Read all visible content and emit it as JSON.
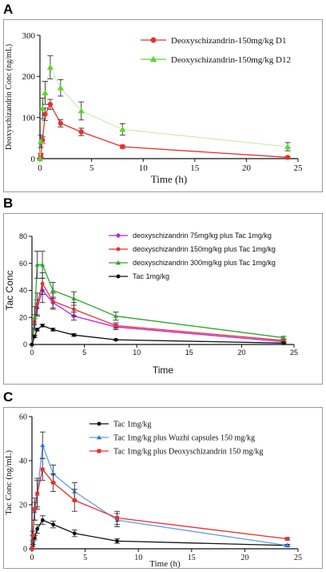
{
  "panels": [
    {
      "letter": "A",
      "chart_data": {
        "type": "line",
        "font": "serif",
        "xlabel": "Time (h)",
        "ylabel": "Deoxyschizandrin Conc (ng/mL)",
        "xlim": [
          0,
          25
        ],
        "ylim": [
          0,
          300
        ],
        "xticks": [
          0,
          5,
          10,
          15,
          20,
          25
        ],
        "yticks": [
          0,
          100,
          200,
          300
        ],
        "legend_position": "top-right",
        "series": [
          {
            "name": "Deoxyschizandrin-150mg/kg D1",
            "color": "#e8302c",
            "line_color": "#e8302c",
            "marker": "circle",
            "x": [
              0,
              0.083,
              0.25,
              0.5,
              1,
              2,
              4,
              8,
              24
            ],
            "y": [
              0,
              8,
              45,
              108,
              132,
              86,
              65,
              29,
              3
            ],
            "err": [
              0,
              5,
              8,
              15,
              12,
              9,
              9,
              4,
              2
            ]
          },
          {
            "name": "Deoxyschizandrin-150mg/kg D12",
            "color": "#5ed629",
            "line_color": "#cdeeb8",
            "marker": "triangle",
            "x": [
              0,
              0.083,
              0.25,
              0.5,
              1,
              2,
              4,
              8,
              24
            ],
            "y": [
              0,
              42,
              122,
              160,
              222,
              172,
              116,
              71,
              29
            ],
            "err": [
              0,
              15,
              25,
              28,
              28,
              20,
              22,
              14,
              10
            ]
          }
        ]
      }
    },
    {
      "letter": "B",
      "chart_data": {
        "type": "line",
        "font": "sans",
        "xlabel": "Time",
        "ylabel": "Tac Conc",
        "xlim": [
          0,
          25
        ],
        "ylim": [
          0,
          80
        ],
        "xticks": [
          0,
          5,
          10,
          15,
          20,
          25
        ],
        "yticks": [
          0,
          20,
          40,
          60,
          80
        ],
        "legend_position": "top-right",
        "series": [
          {
            "name": "deoxyschizandrin 75mg/kg plus Tac 1mg/kg",
            "color": "#bb22dd",
            "line_color": "#bb22dd",
            "marker": "diamond",
            "x": [
              0,
              0.25,
              0.5,
              1,
              2,
              4,
              8,
              24
            ],
            "y": [
              0,
              15,
              27,
              40,
              31,
              21,
              13,
              2
            ],
            "err": [
              0,
              4,
              6,
              9,
              4,
              3,
              2,
              1
            ]
          },
          {
            "name": "deoxyschizandrin 150mg/kg plus Tac 1mg/kg",
            "color": "#e8302c",
            "line_color": "#e8302c",
            "marker": "circle",
            "x": [
              0,
              0.25,
              0.5,
              1,
              2,
              4,
              8,
              24
            ],
            "y": [
              0,
              17,
              30,
              45,
              32,
              26,
              14,
              3
            ],
            "err": [
              0,
              5,
              8,
              8,
              6,
              5,
              2,
              1
            ]
          },
          {
            "name": "deoxyschizandrin 300mg/kg plus Tac 1mg/kg",
            "color": "#2aa82a",
            "line_color": "#2aa82a",
            "marker": "triangle",
            "x": [
              0,
              0.25,
              0.5,
              1,
              2,
              4,
              8,
              24
            ],
            "y": [
              0,
              20,
              59,
              59,
              40,
              34,
              21,
              5
            ],
            "err": [
              0,
              8,
              10,
              10,
              6,
              5,
              3,
              1
            ]
          },
          {
            "name": "Tac 1mg/kg",
            "color": "#111111",
            "line_color": "#111111",
            "marker": "circle",
            "x": [
              0,
              0.25,
              0.5,
              1,
              2,
              4,
              8,
              24
            ],
            "y": [
              0,
              6,
              11,
              14,
              11,
              7,
              3.5,
              1
            ],
            "err": [
              0,
              1,
              1,
              1,
              1,
              1,
              0.5,
              0.3
            ]
          }
        ]
      }
    },
    {
      "letter": "C",
      "chart_data": {
        "type": "line",
        "font": "serif",
        "xlabel": "Time (h)",
        "ylabel": "Tac Conc (ng/mL)",
        "xlim": [
          0,
          25
        ],
        "ylim": [
          0,
          60
        ],
        "xticks": [
          0,
          5,
          10,
          15,
          20,
          25
        ],
        "yticks": [
          0,
          20,
          40,
          60
        ],
        "legend_position": "top-right",
        "series": [
          {
            "name": "Tac 1mg/kg",
            "color": "#111111",
            "line_color": "#111111",
            "marker": "circle",
            "x": [
              0,
              0.083,
              0.25,
              0.5,
              1,
              2,
              4,
              8,
              24
            ],
            "y": [
              0,
              2,
              5,
              9,
              13,
              11,
              7,
              3.5,
              1.5
            ],
            "err": [
              0,
              1,
              1,
              2,
              2,
              1.5,
              1.5,
              1,
              0.5
            ]
          },
          {
            "name": "Tac 1mg/kg plus Wuzhi capsules 150 mg/kg",
            "color": "#2a7be0",
            "line_color": "#5aa0f0",
            "marker": "triangle",
            "x": [
              0,
              0.083,
              0.25,
              0.5,
              1,
              2,
              4,
              8,
              24
            ],
            "y": [
              0,
              4,
              17,
              25,
              47,
              34,
              26,
              13,
              1.5
            ],
            "err": [
              0,
              2,
              4,
              6,
              6,
              4,
              4,
              3,
              0.5
            ]
          },
          {
            "name": "Tac 1mg/kg plus Deoxyschizandrin 150 mg/kg",
            "color": "#e8302c",
            "line_color": "#e8302c",
            "marker": "square",
            "x": [
              0,
              0.083,
              0.25,
              0.5,
              1,
              2,
              4,
              8,
              24
            ],
            "y": [
              0,
              6,
              18,
              25,
              36,
              30,
              22,
              14,
              4.5
            ],
            "err": [
              0,
              2,
              5,
              7,
              5,
              4,
              5,
              3,
              0.5
            ]
          }
        ]
      }
    }
  ]
}
